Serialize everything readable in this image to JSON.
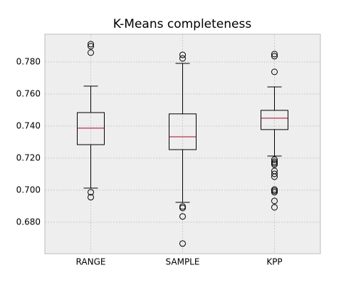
{
  "chart_data": {
    "type": "box",
    "title": "K-Means completeness",
    "categories": [
      "RANGE",
      "SAMPLE",
      "KPP"
    ],
    "boxes": [
      {
        "whislo": 0.7013,
        "q1": 0.7284,
        "med": 0.7387,
        "q3": 0.7484,
        "whishi": 0.7649,
        "fliers": [
          0.7911,
          0.7898,
          0.7858,
          0.6987,
          0.6956
        ]
      },
      {
        "whislo": 0.6924,
        "q1": 0.7253,
        "med": 0.7333,
        "q3": 0.7476,
        "whishi": 0.7791,
        "fliers": [
          0.7844,
          0.7822,
          0.6898,
          0.6889,
          0.6836,
          0.6667
        ]
      },
      {
        "whislo": 0.7213,
        "q1": 0.7378,
        "med": 0.7449,
        "q3": 0.7498,
        "whishi": 0.7644,
        "fliers": [
          0.7849,
          0.7836,
          0.7738,
          0.7191,
          0.7178,
          0.7169,
          0.716,
          0.712,
          0.7102,
          0.7084,
          0.7004,
          0.6996,
          0.6987,
          0.6933,
          0.6893
        ]
      }
    ],
    "box_color": "#000000",
    "median_color": "#A60628",
    "background": "#EEEEEE",
    "grid": true,
    "ylim": [
      0.6604,
      0.7973
    ],
    "yticks": [
      {
        "value": 0.68,
        "label": "0.680"
      },
      {
        "value": 0.7,
        "label": "0.700"
      },
      {
        "value": 0.72,
        "label": "0.720"
      },
      {
        "value": 0.74,
        "label": "0.740"
      },
      {
        "value": 0.76,
        "label": "0.760"
      },
      {
        "value": 0.78,
        "label": "0.780"
      }
    ]
  }
}
